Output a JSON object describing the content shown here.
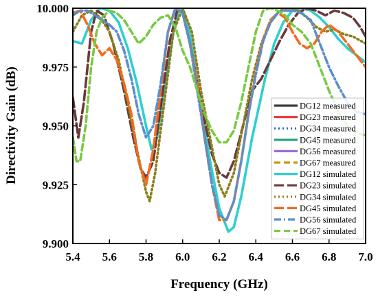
{
  "chart_data": {
    "type": "line",
    "xlabel": "Frequency (GHz)",
    "ylabel": "Directivity Gain (dB)",
    "xlim": [
      5.4,
      7.0
    ],
    "ylim": [
      9.9,
      10.0
    ],
    "xticks": [
      5.4,
      5.6,
      5.8,
      6.0,
      6.2,
      6.4,
      6.6,
      6.8,
      7.0
    ],
    "xtick_labels": [
      "5.4",
      "5.6",
      "5.8",
      "6.0",
      "6.2",
      "6.4",
      "6.6",
      "6.8",
      "7.0"
    ],
    "yticks": [
      9.9,
      9.925,
      9.95,
      9.975,
      10.0
    ],
    "ytick_labels": [
      "9.900",
      "9.925",
      "9.950",
      "9.975",
      "10.000"
    ],
    "grid": false,
    "legend_position": "bottom-right",
    "series": [
      {
        "name": "DG12 measured",
        "color": "#3a3a3a",
        "dash": "solid",
        "x": [],
        "y": []
      },
      {
        "name": "DG23 measured",
        "color": "#ee3b3b",
        "dash": "solid",
        "x": [],
        "y": []
      },
      {
        "name": "DG34 measured",
        "color": "#1f6fd0",
        "dash": "dot",
        "x": [],
        "y": []
      },
      {
        "name": "DG45 measured",
        "color": "#1aa37a",
        "dash": "solid",
        "x": [],
        "y": []
      },
      {
        "name": "DG56 measured",
        "color": "#a066d8",
        "dash": "solid",
        "x": [],
        "y": []
      },
      {
        "name": "DG67 measured",
        "color": "#c89a10",
        "dash": "dash",
        "x": [],
        "y": []
      },
      {
        "name": "DG12 simulated",
        "color": "#2ecfcf",
        "dash": "solid",
        "x": [
          5.4,
          5.45,
          5.5,
          5.55,
          5.6,
          5.65,
          5.7,
          5.75,
          5.8,
          5.83,
          5.86,
          5.9,
          5.95,
          5.98,
          6.0,
          6.03,
          6.07,
          6.1,
          6.15,
          6.2,
          6.25,
          6.28,
          6.32,
          6.38,
          6.45,
          6.5,
          6.55,
          6.6,
          6.65,
          6.7,
          6.75,
          6.8,
          6.85,
          6.9,
          6.95,
          7.0
        ],
        "y": [
          9.986,
          9.985,
          9.995,
          10.0,
          9.999,
          9.994,
          9.983,
          9.968,
          9.95,
          9.94,
          9.945,
          9.965,
          9.99,
          9.999,
          10.0,
          9.993,
          9.975,
          9.958,
          9.935,
          9.915,
          9.905,
          9.907,
          9.92,
          9.945,
          9.97,
          9.985,
          9.994,
          9.999,
          10.0,
          9.999,
          9.996,
          9.992,
          9.987,
          9.983,
          9.98,
          9.977
        ]
      },
      {
        "name": "DG23 simulated",
        "color": "#6b3a3a",
        "dash": "long-dash",
        "x": [
          5.4,
          5.43,
          5.46,
          5.5,
          5.53,
          5.57,
          5.62,
          5.68,
          5.73,
          5.77,
          5.8,
          5.84,
          5.88,
          5.93,
          5.97,
          6.0,
          6.04,
          6.08,
          6.12,
          6.16,
          6.2,
          6.24,
          6.28,
          6.33,
          6.38,
          6.43,
          6.48,
          6.53,
          6.58,
          6.63,
          6.68,
          6.73,
          6.78,
          6.83,
          6.88,
          6.93,
          6.97,
          7.0
        ],
        "y": [
          9.962,
          9.945,
          9.96,
          9.99,
          9.999,
          9.997,
          9.985,
          9.965,
          9.945,
          9.932,
          9.928,
          9.935,
          9.958,
          9.986,
          9.999,
          9.998,
          9.985,
          9.968,
          9.952,
          9.938,
          9.93,
          9.928,
          9.935,
          9.95,
          9.965,
          9.97,
          9.978,
          9.986,
          9.993,
          9.998,
          10.0,
          9.999,
          9.997,
          9.999,
          9.998,
          9.996,
          9.992,
          9.988
        ]
      },
      {
        "name": "DG34 simulated",
        "color": "#8a7f1a",
        "dash": "dot",
        "x": [
          5.4,
          5.45,
          5.5,
          5.55,
          5.6,
          5.65,
          5.7,
          5.75,
          5.8,
          5.82,
          5.85,
          5.9,
          5.95,
          6.0,
          6.05,
          6.1,
          6.15,
          6.2,
          6.23,
          6.28,
          6.33,
          6.38,
          6.43,
          6.48,
          6.53,
          6.58,
          6.63,
          6.68,
          6.73,
          6.78,
          6.83,
          6.88,
          6.93,
          7.0
        ],
        "y": [
          9.99,
          9.997,
          9.999,
          9.996,
          9.99,
          9.978,
          9.96,
          9.94,
          9.922,
          9.918,
          9.93,
          9.96,
          9.99,
          10.0,
          9.99,
          9.965,
          9.945,
          9.925,
          9.92,
          9.93,
          9.95,
          9.97,
          9.985,
          9.994,
          9.999,
          10.0,
          9.999,
          9.996,
          9.992,
          9.99,
          9.991,
          9.989,
          9.988,
          9.985
        ]
      },
      {
        "name": "DG45 simulated",
        "color": "#f26b1d",
        "dash": "long-dash",
        "x": [
          5.4,
          5.44,
          5.48,
          5.52,
          5.56,
          5.6,
          5.64,
          5.68,
          5.72,
          5.76,
          5.8,
          5.84,
          5.88,
          5.92,
          5.96,
          6.0,
          6.04,
          6.08,
          6.12,
          6.16,
          6.2,
          6.24,
          6.28,
          6.32,
          6.36,
          6.4,
          6.44,
          6.48,
          6.52,
          6.56,
          6.6,
          6.64,
          6.68,
          6.72,
          6.76,
          6.8,
          6.85,
          6.9,
          6.95,
          7.0
        ],
        "y": [
          9.998,
          9.999,
          9.993,
          9.985,
          9.98,
          9.983,
          9.978,
          9.968,
          9.955,
          9.935,
          9.925,
          9.94,
          9.965,
          9.99,
          10.0,
          9.998,
          9.985,
          9.968,
          9.945,
          9.925,
          9.91,
          9.91,
          9.918,
          9.935,
          9.955,
          9.973,
          9.987,
          9.995,
          9.998,
          9.996,
          9.99,
          9.985,
          9.983,
          9.985,
          9.99,
          9.993,
          9.99,
          9.985,
          9.98,
          9.975
        ]
      },
      {
        "name": "DG56 simulated",
        "color": "#5b8fc9",
        "dash": "dash-dot",
        "x": [
          5.4,
          5.44,
          5.48,
          5.52,
          5.56,
          5.6,
          5.64,
          5.68,
          5.72,
          5.76,
          5.8,
          5.84,
          5.88,
          5.92,
          5.96,
          6.0,
          6.04,
          6.08,
          6.12,
          6.16,
          6.2,
          6.24,
          6.28,
          6.32,
          6.36,
          6.4,
          6.44,
          6.48,
          6.52,
          6.56,
          6.6,
          6.65,
          6.7,
          6.75,
          6.8,
          6.85,
          6.9,
          6.95,
          7.0
        ],
        "y": [
          9.997,
          9.999,
          9.999,
          9.997,
          9.995,
          9.993,
          9.99,
          9.982,
          9.97,
          9.955,
          9.945,
          9.95,
          9.968,
          9.99,
          10.0,
          9.998,
          9.985,
          9.965,
          9.945,
          9.925,
          9.912,
          9.91,
          9.918,
          9.935,
          9.955,
          9.972,
          9.986,
          9.994,
          9.998,
          9.999,
          9.999,
          9.998,
          9.995,
          9.985,
          9.975,
          9.967,
          9.96,
          9.956,
          9.955
        ]
      },
      {
        "name": "DG67 simulated",
        "color": "#7ac943",
        "dash": "dash",
        "x": [
          5.4,
          5.42,
          5.44,
          5.47,
          5.5,
          5.53,
          5.56,
          5.6,
          5.64,
          5.68,
          5.72,
          5.76,
          5.8,
          5.84,
          5.88,
          5.92,
          5.96,
          6.0,
          6.04,
          6.08,
          6.12,
          6.16,
          6.2,
          6.24,
          6.28,
          6.32,
          6.36,
          6.4,
          6.44,
          6.48,
          6.52,
          6.56,
          6.6,
          6.65,
          6.7,
          6.75,
          6.8,
          6.85,
          6.9,
          6.95,
          7.0
        ],
        "y": [
          9.945,
          9.935,
          9.935,
          9.95,
          9.975,
          9.99,
          9.996,
          9.999,
          9.998,
          9.995,
          9.99,
          9.985,
          9.988,
          9.993,
          9.996,
          9.997,
          9.992,
          9.982,
          9.975,
          9.965,
          9.955,
          9.948,
          9.943,
          9.943,
          9.948,
          9.96,
          9.975,
          9.99,
          9.999,
          10.0,
          9.999,
          9.997,
          9.993,
          9.99,
          9.985,
          9.975,
          9.965,
          9.956,
          9.95,
          9.947,
          9.946
        ]
      }
    ]
  }
}
